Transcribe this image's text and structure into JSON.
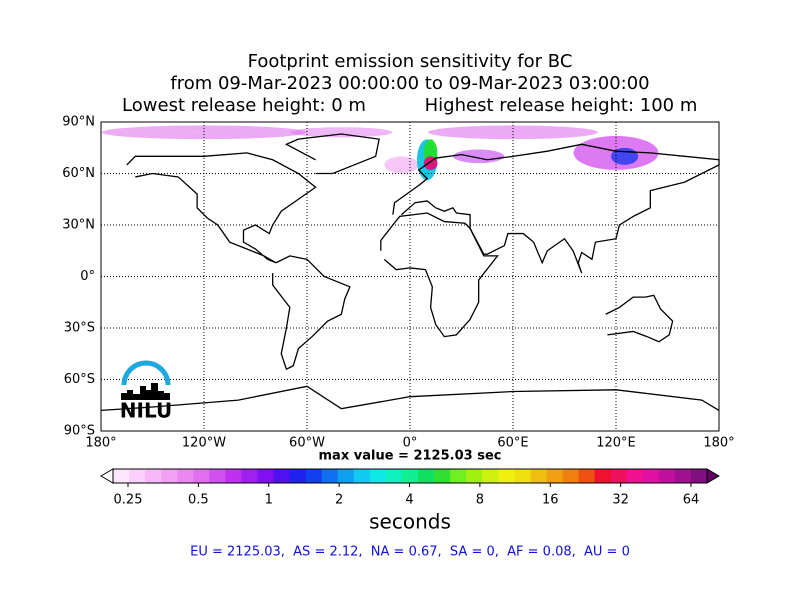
{
  "header": {
    "line1": "Footprint emission sensitivity for BC",
    "line2": "from 09-Mar-2023 00:00:00 to 09-Mar-2023 03:00:00",
    "lowest": "Lowest release height: 0 m",
    "highest": "Highest release height: 100 m"
  },
  "map": {
    "lat_labels": [
      "90°N",
      "60°N",
      "30°N",
      "0°",
      "30°S",
      "60°S",
      "90°S"
    ],
    "lon_labels": [
      "180°",
      "120°W",
      "60°W",
      "0°",
      "60°E",
      "120°E",
      "180°"
    ],
    "max_value": "max value = 2125.03 sec",
    "logo": "NILU"
  },
  "colorbar": {
    "tick_labels": [
      "0.25",
      "0.5",
      "1",
      "2",
      "4",
      "8",
      "16",
      "32",
      "64"
    ],
    "label": "seconds"
  },
  "stats": "EU = 2125.03,  AS = 2.12,  NA = 0.67,  SA = 0,  AF = 0.08,  AU = 0"
}
